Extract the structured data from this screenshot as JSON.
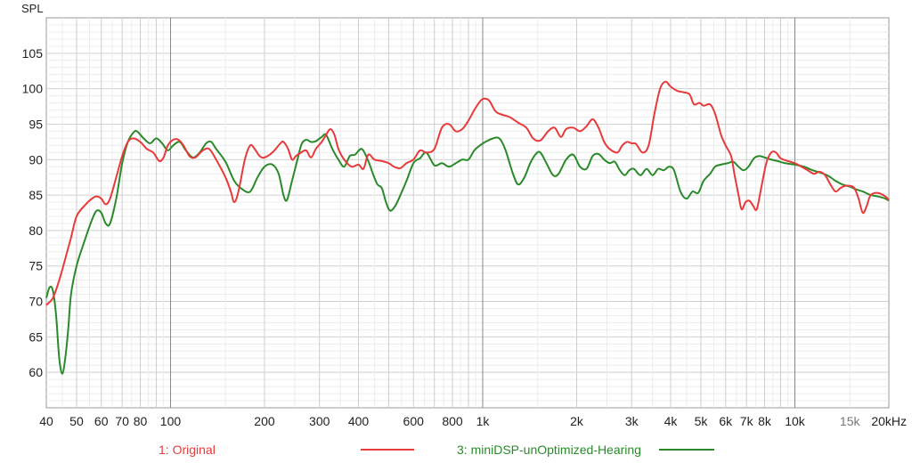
{
  "chart_data": {
    "type": "line",
    "ylabel": "SPL",
    "xscale": "log",
    "xlim": [
      40,
      20000
    ],
    "ylim": [
      55,
      110
    ],
    "grid": true,
    "yticks": [
      60,
      65,
      70,
      75,
      80,
      85,
      90,
      95,
      100,
      105
    ],
    "xticks": [
      {
        "value": 40,
        "label": "40"
      },
      {
        "value": 50,
        "label": "50"
      },
      {
        "value": 60,
        "label": "60"
      },
      {
        "value": 70,
        "label": "70"
      },
      {
        "value": 80,
        "label": "80"
      },
      {
        "value": 100,
        "label": "100"
      },
      {
        "value": 200,
        "label": "200"
      },
      {
        "value": 300,
        "label": "300"
      },
      {
        "value": 400,
        "label": "400"
      },
      {
        "value": 600,
        "label": "600"
      },
      {
        "value": 800,
        "label": "800"
      },
      {
        "value": 1000,
        "label": "1k"
      },
      {
        "value": 2000,
        "label": "2k"
      },
      {
        "value": 3000,
        "label": "3k"
      },
      {
        "value": 4000,
        "label": "4k"
      },
      {
        "value": 5000,
        "label": "5k"
      },
      {
        "value": 6000,
        "label": "6k"
      },
      {
        "value": 7000,
        "label": "7k"
      },
      {
        "value": 8000,
        "label": "8k"
      },
      {
        "value": 10000,
        "label": "10k"
      },
      {
        "value": 15000,
        "label": "15k",
        "minor": true
      },
      {
        "value": 20000,
        "label": "20kHz"
      }
    ],
    "legend_placement": "bottom",
    "series": [
      {
        "name": "1: Original",
        "color": "#e83a3a",
        "points": [
          [
            40,
            69.5
          ],
          [
            42,
            70.5
          ],
          [
            44,
            73
          ],
          [
            46,
            76
          ],
          [
            48,
            79
          ],
          [
            50,
            82
          ],
          [
            53,
            83.5
          ],
          [
            56,
            84.5
          ],
          [
            58,
            84.8
          ],
          [
            60,
            84.5
          ],
          [
            62,
            83.7
          ],
          [
            64,
            84.5
          ],
          [
            67,
            87.5
          ],
          [
            70,
            90.5
          ],
          [
            73,
            92.5
          ],
          [
            76,
            93
          ],
          [
            80,
            92.5
          ],
          [
            84,
            91.5
          ],
          [
            88,
            91
          ],
          [
            92,
            89.8
          ],
          [
            95,
            90.3
          ],
          [
            98,
            92
          ],
          [
            102,
            92.8
          ],
          [
            106,
            92.8
          ],
          [
            110,
            92
          ],
          [
            115,
            90.5
          ],
          [
            120,
            90.3
          ],
          [
            127,
            91.3
          ],
          [
            133,
            91.5
          ],
          [
            140,
            90
          ],
          [
            150,
            87.5
          ],
          [
            156,
            85.5
          ],
          [
            160,
            84
          ],
          [
            165,
            85.5
          ],
          [
            173,
            90
          ],
          [
            180,
            92
          ],
          [
            186,
            91.5
          ],
          [
            193,
            90.5
          ],
          [
            200,
            90.3
          ],
          [
            212,
            91
          ],
          [
            225,
            92.3
          ],
          [
            230,
            92.5
          ],
          [
            238,
            91.5
          ],
          [
            245,
            90
          ],
          [
            252,
            90.5
          ],
          [
            262,
            91
          ],
          [
            272,
            91.3
          ],
          [
            282,
            90.3
          ],
          [
            292,
            91.5
          ],
          [
            305,
            92.5
          ],
          [
            315,
            93.5
          ],
          [
            325,
            94.3
          ],
          [
            335,
            93.5
          ],
          [
            345,
            91.5
          ],
          [
            360,
            90
          ],
          [
            380,
            89
          ],
          [
            400,
            89.3
          ],
          [
            415,
            88.7
          ],
          [
            430,
            90.7
          ],
          [
            450,
            90
          ],
          [
            475,
            89.8
          ],
          [
            500,
            89.5
          ],
          [
            520,
            89
          ],
          [
            545,
            88.8
          ],
          [
            570,
            89.5
          ],
          [
            600,
            90
          ],
          [
            630,
            91.3
          ],
          [
            660,
            91
          ],
          [
            700,
            91.5
          ],
          [
            740,
            94.5
          ],
          [
            780,
            95
          ],
          [
            820,
            94
          ],
          [
            860,
            94.3
          ],
          [
            900,
            95.5
          ],
          [
            940,
            97
          ],
          [
            980,
            98.2
          ],
          [
            1010,
            98.6
          ],
          [
            1050,
            98.3
          ],
          [
            1100,
            96.8
          ],
          [
            1160,
            96.3
          ],
          [
            1220,
            96
          ],
          [
            1300,
            95.2
          ],
          [
            1380,
            94.5
          ],
          [
            1450,
            93
          ],
          [
            1530,
            92.7
          ],
          [
            1620,
            94
          ],
          [
            1700,
            94.5
          ],
          [
            1780,
            93.2
          ],
          [
            1850,
            94.3
          ],
          [
            1950,
            94.5
          ],
          [
            2050,
            94
          ],
          [
            2150,
            94.7
          ],
          [
            2250,
            95.7
          ],
          [
            2350,
            94.5
          ],
          [
            2450,
            92.5
          ],
          [
            2550,
            91.5
          ],
          [
            2700,
            91
          ],
          [
            2800,
            92
          ],
          [
            2900,
            92.5
          ],
          [
            3000,
            92.3
          ],
          [
            3100,
            92.2
          ],
          [
            3250,
            91
          ],
          [
            3400,
            92
          ],
          [
            3550,
            96.5
          ],
          [
            3700,
            100
          ],
          [
            3850,
            101
          ],
          [
            4000,
            100.3
          ],
          [
            4200,
            99.7
          ],
          [
            4400,
            99.5
          ],
          [
            4600,
            99.2
          ],
          [
            4750,
            97.8
          ],
          [
            4950,
            98
          ],
          [
            5100,
            97.6
          ],
          [
            5350,
            97.8
          ],
          [
            5550,
            96.5
          ],
          [
            5800,
            93.5
          ],
          [
            6000,
            92
          ],
          [
            6250,
            90.5
          ],
          [
            6400,
            88
          ],
          [
            6600,
            85
          ],
          [
            6750,
            83
          ],
          [
            6950,
            84
          ],
          [
            7150,
            84.2
          ],
          [
            7350,
            83.5
          ],
          [
            7550,
            83
          ],
          [
            7800,
            86
          ],
          [
            8100,
            89.5
          ],
          [
            8400,
            91
          ],
          [
            8700,
            91
          ],
          [
            9000,
            90.2
          ],
          [
            9500,
            89.8
          ],
          [
            10000,
            89.5
          ],
          [
            10500,
            89
          ],
          [
            11000,
            88.5
          ],
          [
            11500,
            88
          ],
          [
            12000,
            88.3
          ],
          [
            12500,
            87.8
          ],
          [
            13000,
            86.5
          ],
          [
            13500,
            85.5
          ],
          [
            14000,
            86
          ],
          [
            14500,
            86.3
          ],
          [
            15000,
            86.3
          ],
          [
            15500,
            86
          ],
          [
            16000,
            84.5
          ],
          [
            16500,
            82.5
          ],
          [
            17000,
            83.5
          ],
          [
            17500,
            85
          ],
          [
            18500,
            85.3
          ],
          [
            19500,
            84.8
          ],
          [
            20000,
            84.3
          ]
        ]
      },
      {
        "name": "3: miniDSP-unOptimized-Hearing",
        "color": "#2a8a2a",
        "points": [
          [
            40,
            70.5
          ],
          [
            41,
            72
          ],
          [
            42,
            71.5
          ],
          [
            43,
            68
          ],
          [
            44,
            62
          ],
          [
            45,
            59.8
          ],
          [
            46,
            62
          ],
          [
            47,
            66
          ],
          [
            48,
            71
          ],
          [
            50,
            75
          ],
          [
            53,
            78.5
          ],
          [
            56,
            81.5
          ],
          [
            58,
            82.8
          ],
          [
            60,
            82.5
          ],
          [
            62,
            81
          ],
          [
            64,
            81
          ],
          [
            67,
            84.5
          ],
          [
            70,
            89.5
          ],
          [
            73,
            92.5
          ],
          [
            76,
            93.8
          ],
          [
            78,
            94
          ],
          [
            82,
            93
          ],
          [
            86,
            92.3
          ],
          [
            90,
            93
          ],
          [
            94,
            92.3
          ],
          [
            98,
            91.3
          ],
          [
            102,
            92
          ],
          [
            107,
            92.5
          ],
          [
            112,
            91.3
          ],
          [
            118,
            90.3
          ],
          [
            124,
            91
          ],
          [
            130,
            92.3
          ],
          [
            135,
            92.5
          ],
          [
            140,
            91.5
          ],
          [
            150,
            89.7
          ],
          [
            160,
            87
          ],
          [
            170,
            85.8
          ],
          [
            180,
            85.5
          ],
          [
            190,
            87.5
          ],
          [
            200,
            89
          ],
          [
            212,
            89.3
          ],
          [
            222,
            88
          ],
          [
            230,
            85
          ],
          [
            236,
            84.3
          ],
          [
            245,
            87
          ],
          [
            255,
            90
          ],
          [
            263,
            92.2
          ],
          [
            272,
            92.8
          ],
          [
            282,
            92.5
          ],
          [
            292,
            92.6
          ],
          [
            305,
            93.2
          ],
          [
            315,
            93.5
          ],
          [
            330,
            91.5
          ],
          [
            345,
            90
          ],
          [
            360,
            89
          ],
          [
            375,
            90.5
          ],
          [
            390,
            90.7
          ],
          [
            410,
            91.5
          ],
          [
            430,
            89.8
          ],
          [
            445,
            88
          ],
          [
            460,
            86.5
          ],
          [
            475,
            86
          ],
          [
            490,
            84
          ],
          [
            505,
            82.8
          ],
          [
            525,
            83.5
          ],
          [
            545,
            85
          ],
          [
            570,
            87
          ],
          [
            600,
            89.5
          ],
          [
            630,
            90.2
          ],
          [
            660,
            91
          ],
          [
            700,
            89.2
          ],
          [
            740,
            89.5
          ],
          [
            780,
            89
          ],
          [
            820,
            89.5
          ],
          [
            860,
            90
          ],
          [
            900,
            90
          ],
          [
            940,
            91.3
          ],
          [
            980,
            92
          ],
          [
            1020,
            92.5
          ],
          [
            1080,
            93
          ],
          [
            1130,
            93
          ],
          [
            1180,
            91.5
          ],
          [
            1250,
            88
          ],
          [
            1300,
            86.5
          ],
          [
            1360,
            87.5
          ],
          [
            1420,
            89.5
          ],
          [
            1480,
            90.8
          ],
          [
            1530,
            91
          ],
          [
            1600,
            89.5
          ],
          [
            1680,
            87.8
          ],
          [
            1750,
            88
          ],
          [
            1850,
            90
          ],
          [
            1950,
            90.7
          ],
          [
            2050,
            89
          ],
          [
            2150,
            88.7
          ],
          [
            2250,
            90.5
          ],
          [
            2350,
            90.8
          ],
          [
            2450,
            90
          ],
          [
            2550,
            89.5
          ],
          [
            2650,
            89.7
          ],
          [
            2750,
            88.5
          ],
          [
            2850,
            87.8
          ],
          [
            2950,
            88.5
          ],
          [
            3050,
            88.7
          ],
          [
            3200,
            87.8
          ],
          [
            3350,
            88.7
          ],
          [
            3500,
            87.8
          ],
          [
            3650,
            88.7
          ],
          [
            3800,
            88.5
          ],
          [
            3950,
            89
          ],
          [
            4100,
            88.5
          ],
          [
            4300,
            85.5
          ],
          [
            4500,
            84.5
          ],
          [
            4700,
            85.5
          ],
          [
            4900,
            85.3
          ],
          [
            5100,
            87
          ],
          [
            5350,
            88
          ],
          [
            5550,
            89
          ],
          [
            5800,
            89.3
          ],
          [
            6100,
            89.5
          ],
          [
            6350,
            89.7
          ],
          [
            6600,
            89
          ],
          [
            6850,
            88.5
          ],
          [
            7100,
            89
          ],
          [
            7400,
            90.2
          ],
          [
            7700,
            90.5
          ],
          [
            8000,
            90.3
          ],
          [
            8400,
            90
          ],
          [
            8800,
            89.8
          ],
          [
            9300,
            89.5
          ],
          [
            10000,
            89.3
          ],
          [
            10700,
            89
          ],
          [
            11400,
            88.5
          ],
          [
            12000,
            88.2
          ],
          [
            12800,
            87.7
          ],
          [
            13500,
            87
          ],
          [
            14200,
            86.5
          ],
          [
            15000,
            86.2
          ],
          [
            15700,
            85.8
          ],
          [
            16500,
            85.5
          ],
          [
            17500,
            85
          ],
          [
            18500,
            84.8
          ],
          [
            19500,
            84.5
          ],
          [
            20000,
            84.2
          ]
        ]
      }
    ]
  }
}
